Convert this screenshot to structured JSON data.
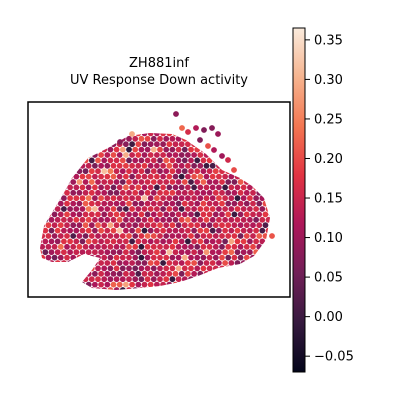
{
  "chart_data": {
    "type": "scatter",
    "title": "ZH881inf",
    "subtitle": "UV Response Down activity",
    "xlabel": "",
    "ylabel": "",
    "grid": false,
    "colormap": "rocket",
    "colormap_stops": [
      "#03051a",
      "#35193e",
      "#701f57",
      "#ad1759",
      "#e13342",
      "#f37651",
      "#f6b48f",
      "#faebdd"
    ],
    "colorbar": {
      "vmin": -0.07,
      "vmax": 0.365,
      "ticks": [
        -0.05,
        0.0,
        0.05,
        0.1,
        0.15,
        0.2,
        0.25,
        0.3,
        0.35
      ],
      "tick_labels": [
        "−0.05",
        "0.00",
        "0.05",
        "0.10",
        "0.15",
        "0.20",
        "0.25",
        "0.30",
        "0.35"
      ]
    },
    "spot_value_summary": {
      "typical_min": 0.02,
      "typical_max": 0.26,
      "median": 0.13
    }
  }
}
